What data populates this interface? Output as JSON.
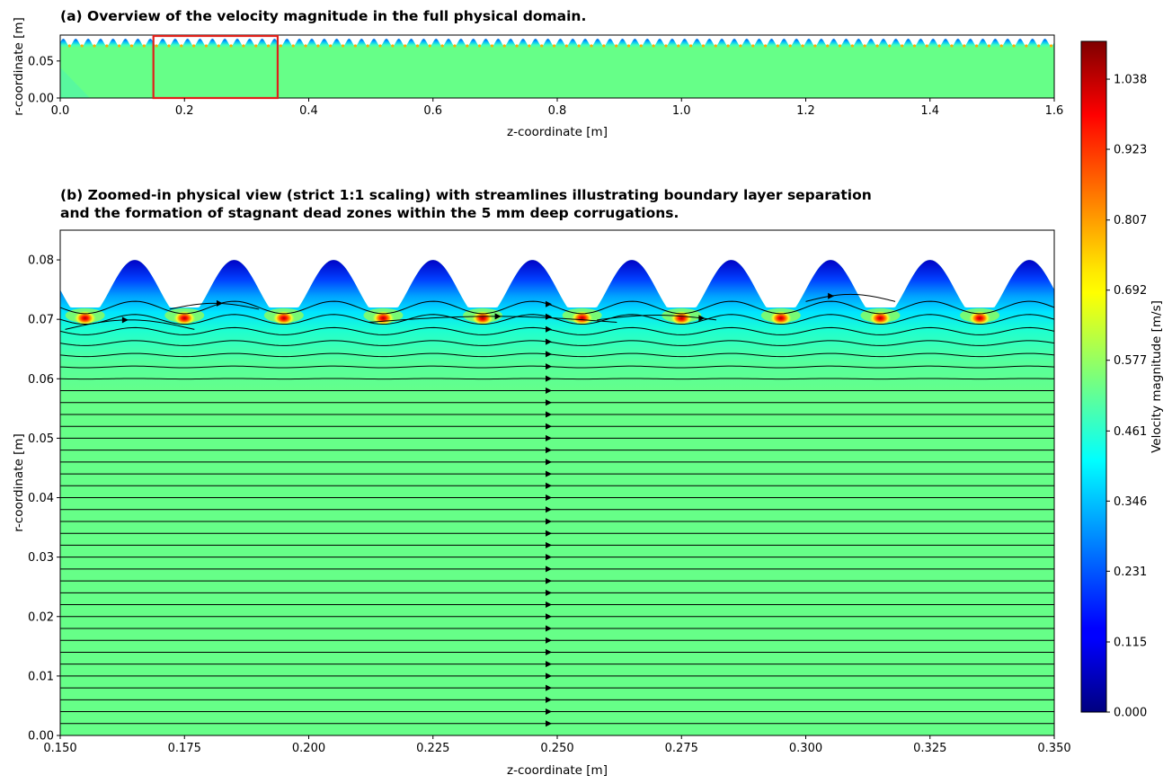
{
  "colors": {
    "bulk_flow": "#66ff88",
    "zoom_box": "#e0201a",
    "streamline": "#000000",
    "colormap": "jet"
  },
  "chart_data": [
    {
      "id": "a",
      "type": "heatmap",
      "title": "(a) Overview of the velocity magnitude in the full physical domain.",
      "xlabel": "z-coordinate [m]",
      "ylabel": "r-coordinate [m]",
      "xlim": [
        0.0,
        1.6
      ],
      "ylim": [
        0.0,
        0.085
      ],
      "xticks": [
        0.0,
        0.2,
        0.4,
        0.6,
        0.8,
        1.0,
        1.2,
        1.4,
        1.6
      ],
      "xtick_labels": [
        "0.0",
        "0.2",
        "0.4",
        "0.6",
        "0.8",
        "1.0",
        "1.2",
        "1.4",
        "1.6"
      ],
      "yticks": [
        0.0,
        0.05
      ],
      "ytick_labels": [
        "0.00",
        "0.05"
      ],
      "wall": {
        "mean_r": 0.075,
        "amplitude_r": 0.005,
        "period_z": 0.02,
        "peak_first_z": 0.005
      },
      "bulk_velocity": 0.6,
      "zoom_box": {
        "z": [
          0.15,
          0.35
        ],
        "r": [
          0.0,
          0.085
        ]
      }
    },
    {
      "id": "b",
      "type": "heatmap",
      "title_lines": [
        "(b) Zoomed-in physical view (strict 1:1 scaling) with streamlines illustrating boundary layer separation",
        "and the formation of stagnant dead zones within the 5 mm deep corrugations."
      ],
      "xlabel": "z-coordinate [m]",
      "ylabel": "r-coordinate [m]",
      "xlim": [
        0.15,
        0.35
      ],
      "ylim": [
        0.0,
        0.085
      ],
      "xticks": [
        0.15,
        0.175,
        0.2,
        0.225,
        0.25,
        0.275,
        0.3,
        0.325,
        0.35
      ],
      "xtick_labels": [
        "0.150",
        "0.175",
        "0.200",
        "0.225",
        "0.250",
        "0.275",
        "0.300",
        "0.325",
        "0.350"
      ],
      "yticks": [
        0.0,
        0.01,
        0.02,
        0.03,
        0.04,
        0.05,
        0.06,
        0.07,
        0.08
      ],
      "ytick_labels": [
        "0.00",
        "0.01",
        "0.02",
        "0.03",
        "0.04",
        "0.05",
        "0.06",
        "0.07",
        "0.08"
      ],
      "wall": {
        "mean_r": 0.075,
        "amplitude_r": 0.005,
        "period_z": 0.02,
        "peak_first_z": 0.165
      },
      "hotspot_z": [
        0.155,
        0.175,
        0.195,
        0.215,
        0.235,
        0.255,
        0.275,
        0.295,
        0.315,
        0.335
      ],
      "hotspot_r": 0.0702,
      "peak_velocity": 1.1,
      "bulk_velocity": 0.6,
      "streamlines": {
        "r_start": 0.002,
        "r_end": 0.0725,
        "spacing": 0.002,
        "arrow_z": 0.2482
      }
    }
  ],
  "colorbar": {
    "label": "Velocity magnitude [m/s]",
    "vmin": 0.0,
    "vmax": 1.1,
    "ticks": [
      0.0,
      0.115,
      0.231,
      0.346,
      0.461,
      0.577,
      0.692,
      0.807,
      0.923,
      1.038
    ],
    "tick_labels": [
      "0.000",
      "0.115",
      "0.231",
      "0.346",
      "0.461",
      "0.577",
      "0.692",
      "0.807",
      "0.923",
      "1.038"
    ]
  }
}
